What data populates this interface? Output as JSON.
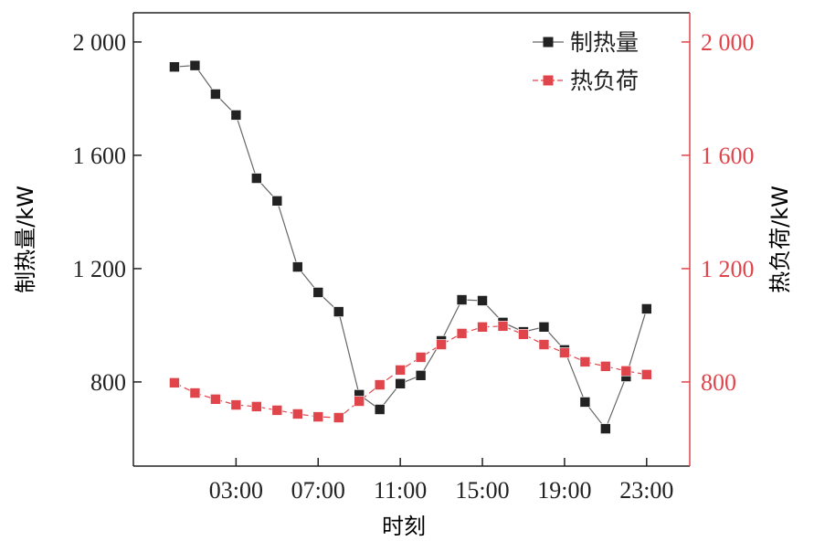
{
  "chart_data": {
    "type": "line",
    "title": "",
    "xlabel": "时刻",
    "ylabel": "制热量/kW",
    "y2label": "热负荷/kW",
    "x": [
      0,
      1,
      2,
      3,
      4,
      5,
      6,
      7,
      8,
      9,
      10,
      11,
      12,
      13,
      14,
      15,
      16,
      17,
      18,
      19,
      20,
      21,
      22,
      23
    ],
    "xlim": [
      -2,
      25.1
    ],
    "ylim": [
      503,
      2103
    ],
    "y2lim": [
      503,
      2103
    ],
    "xticks": [
      3,
      7,
      11,
      15,
      19,
      23
    ],
    "xtick_labels": [
      "03:00",
      "07:00",
      "11:00",
      "15:00",
      "19:00",
      "23:00"
    ],
    "yticks": [
      2000,
      1600,
      1200,
      800
    ],
    "ytick_labels": [
      "2 000",
      "1 600",
      "1 200",
      "800"
    ],
    "y2ticks": [
      2000,
      1600,
      1200,
      800
    ],
    "y2tick_labels": [
      "2 000",
      "1 600",
      "1 200",
      "800"
    ],
    "grid": false,
    "legend_position": "top-right",
    "series": [
      {
        "name": "制热量",
        "axis": "left",
        "color": "#222222",
        "dash": "solid",
        "values": [
          1912,
          1917,
          1816,
          1742,
          1519,
          1439,
          1206,
          1116,
          1048,
          755,
          703,
          794,
          823,
          945,
          1090,
          1087,
          1010,
          977,
          994,
          913,
          729,
          635,
          819,
          1058
        ]
      },
      {
        "name": "热负荷",
        "axis": "right",
        "color": "#e0454c",
        "dash": "dashed",
        "values": [
          797,
          761,
          739,
          719,
          713,
          700,
          687,
          677,
          674,
          732,
          790,
          842,
          887,
          932,
          971,
          994,
          997,
          968,
          932,
          903,
          871,
          855,
          839,
          826
        ]
      }
    ],
    "right_axis_color": "#e0454c"
  }
}
